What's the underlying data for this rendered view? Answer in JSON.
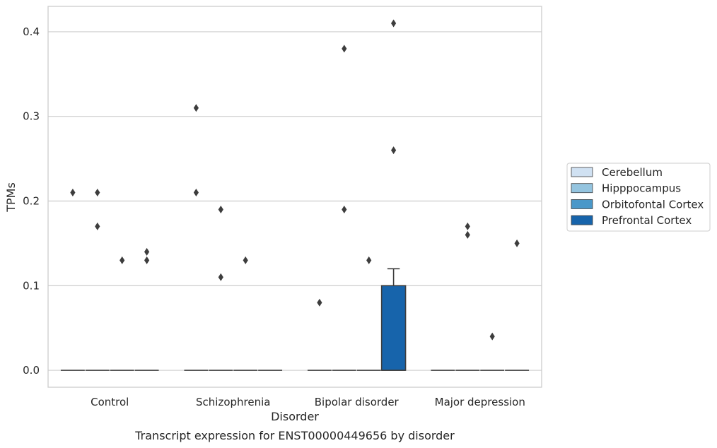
{
  "chart_data": {
    "type": "box",
    "caption": "Transcript expression for ENST00000449656 by disorder",
    "xlabel": "Disorder",
    "ylabel": "TPMs",
    "ylim": [
      -0.02,
      0.43
    ],
    "yticks": [
      0.0,
      0.1,
      0.2,
      0.3,
      0.4
    ],
    "ytick_labels": [
      "0.0",
      "0.1",
      "0.2",
      "0.3",
      "0.4"
    ],
    "grid": "horizontal",
    "legend_position": "right",
    "categories": [
      "Control",
      "Schizophrenia",
      "Bipolar disorder",
      "Major depression"
    ],
    "series": [
      {
        "name": "Cerebellum",
        "color": "#d0e1f2"
      },
      {
        "name": "Hipppocampus",
        "color": "#94c4df"
      },
      {
        "name": "Orbitofontal Cortex",
        "color": "#4a98c9"
      },
      {
        "name": "Prefrontal Cortex",
        "color": "#1764ab"
      }
    ],
    "boxes": [
      {
        "category": "Control",
        "series": "Cerebellum",
        "q1": 0,
        "median": 0,
        "q3": 0,
        "whisker_low": 0,
        "whisker_high": 0,
        "outliers": [
          0.21
        ]
      },
      {
        "category": "Control",
        "series": "Hipppocampus",
        "q1": 0,
        "median": 0,
        "q3": 0,
        "whisker_low": 0,
        "whisker_high": 0,
        "outliers": [
          0.21,
          0.17
        ]
      },
      {
        "category": "Control",
        "series": "Orbitofontal Cortex",
        "q1": 0,
        "median": 0,
        "q3": 0,
        "whisker_low": 0,
        "whisker_high": 0,
        "outliers": [
          0.13
        ]
      },
      {
        "category": "Control",
        "series": "Prefrontal Cortex",
        "q1": 0,
        "median": 0,
        "q3": 0,
        "whisker_low": 0,
        "whisker_high": 0,
        "outliers": [
          0.14,
          0.13
        ]
      },
      {
        "category": "Schizophrenia",
        "series": "Cerebellum",
        "q1": 0,
        "median": 0,
        "q3": 0,
        "whisker_low": 0,
        "whisker_high": 0,
        "outliers": [
          0.31,
          0.21
        ]
      },
      {
        "category": "Schizophrenia",
        "series": "Hipppocampus",
        "q1": 0,
        "median": 0,
        "q3": 0,
        "whisker_low": 0,
        "whisker_high": 0,
        "outliers": [
          0.19,
          0.11
        ]
      },
      {
        "category": "Schizophrenia",
        "series": "Orbitofontal Cortex",
        "q1": 0,
        "median": 0,
        "q3": 0,
        "whisker_low": 0,
        "whisker_high": 0,
        "outliers": [
          0.13
        ]
      },
      {
        "category": "Schizophrenia",
        "series": "Prefrontal Cortex",
        "q1": 0,
        "median": 0,
        "q3": 0,
        "whisker_low": 0,
        "whisker_high": 0,
        "outliers": []
      },
      {
        "category": "Bipolar disorder",
        "series": "Cerebellum",
        "q1": 0,
        "median": 0,
        "q3": 0,
        "whisker_low": 0,
        "whisker_high": 0,
        "outliers": [
          0.08
        ]
      },
      {
        "category": "Bipolar disorder",
        "series": "Hipppocampus",
        "q1": 0,
        "median": 0,
        "q3": 0,
        "whisker_low": 0,
        "whisker_high": 0,
        "outliers": [
          0.38,
          0.19
        ]
      },
      {
        "category": "Bipolar disorder",
        "series": "Orbitofontal Cortex",
        "q1": 0,
        "median": 0,
        "q3": 0,
        "whisker_low": 0,
        "whisker_high": 0,
        "outliers": [
          0.13
        ]
      },
      {
        "category": "Bipolar disorder",
        "series": "Prefrontal Cortex",
        "q1": 0,
        "median": 0,
        "q3": 0.1,
        "whisker_low": 0,
        "whisker_high": 0.12,
        "outliers": [
          0.41,
          0.26
        ]
      },
      {
        "category": "Major depression",
        "series": "Cerebellum",
        "q1": 0,
        "median": 0,
        "q3": 0,
        "whisker_low": 0,
        "whisker_high": 0,
        "outliers": []
      },
      {
        "category": "Major depression",
        "series": "Hipppocampus",
        "q1": 0,
        "median": 0,
        "q3": 0,
        "whisker_low": 0,
        "whisker_high": 0,
        "outliers": [
          0.17,
          0.16
        ]
      },
      {
        "category": "Major depression",
        "series": "Orbitofontal Cortex",
        "q1": 0,
        "median": 0,
        "q3": 0,
        "whisker_low": 0,
        "whisker_high": 0,
        "outliers": [
          0.04
        ]
      },
      {
        "category": "Major depression",
        "series": "Prefrontal Cortex",
        "q1": 0,
        "median": 0,
        "q3": 0,
        "whisker_low": 0,
        "whisker_high": 0,
        "outliers": [
          0.15
        ]
      }
    ]
  }
}
